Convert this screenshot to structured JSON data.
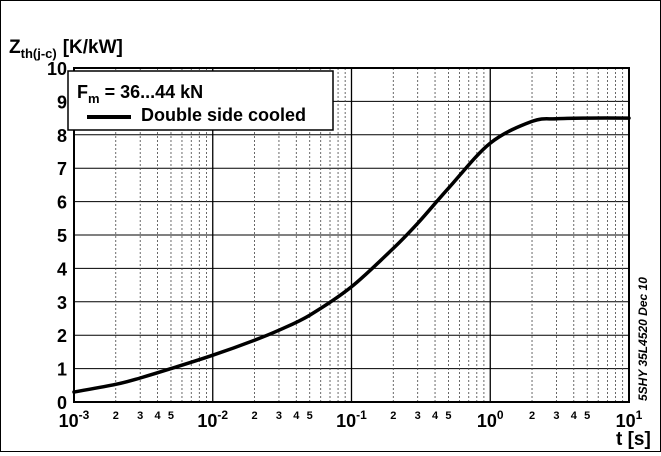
{
  "chart_data": {
    "type": "line",
    "ylabel": {
      "main": "Z",
      "sub": "th(j-c)",
      "unit": "[K/kW]"
    },
    "xlabel": "t [s]",
    "x_scale": "log",
    "xlim": [
      0.001,
      10
    ],
    "ylim": [
      0,
      10
    ],
    "grid": true,
    "y_ticks": [
      "0",
      "1",
      "2",
      "3",
      "4",
      "5",
      "6",
      "7",
      "8",
      "9",
      "10"
    ],
    "x_major_ticks": [
      {
        "base": "10",
        "exp": "-3"
      },
      {
        "base": "10",
        "exp": "-2"
      },
      {
        "base": "10",
        "exp": "-1"
      },
      {
        "base": "10",
        "exp": "0"
      },
      {
        "base": "10",
        "exp": "1"
      }
    ],
    "x_minor_tick_labels": [
      "2",
      "3",
      "4",
      "5"
    ],
    "legend": {
      "placement": "top-left",
      "line1": {
        "main": "F",
        "sub": "m",
        "rest": " = 36...44 kN"
      },
      "series_label": "Double side cooled"
    },
    "side_note": "5SHY 35L4520 Dec 10",
    "series": [
      {
        "name": "Double side cooled",
        "color": "#000000",
        "x": [
          0.001,
          0.002,
          0.003,
          0.005,
          0.01,
          0.02,
          0.03,
          0.05,
          0.1,
          0.2,
          0.3,
          0.5,
          1,
          2,
          3,
          5,
          10
        ],
        "y": [
          0.3,
          0.53,
          0.72,
          1.0,
          1.4,
          1.85,
          2.15,
          2.6,
          3.45,
          4.6,
          5.35,
          6.4,
          7.75,
          8.4,
          8.48,
          8.5,
          8.5
        ]
      }
    ]
  }
}
